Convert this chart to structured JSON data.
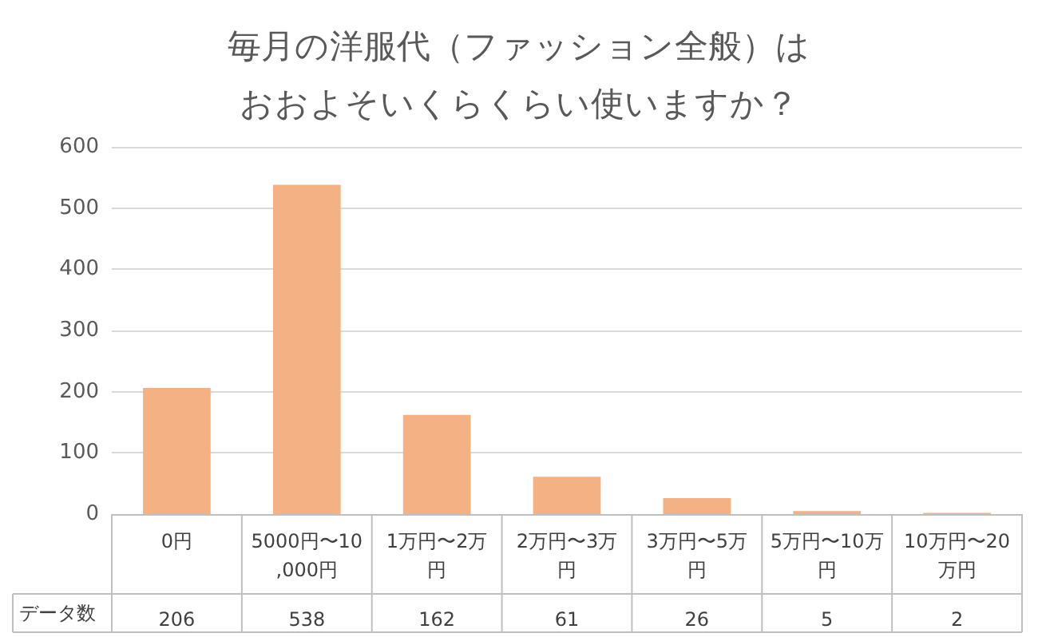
{
  "chart_data": {
    "type": "bar",
    "title": "毎月の洋服代（ファッション全般）はおおよそいくらくらい使いますか？",
    "categories": [
      "0円",
      "5000円〜10,000円",
      "1万円〜2万円",
      "2万円〜3万円",
      "3万円〜5万円",
      "5万円〜10万円",
      "10万円〜20万円"
    ],
    "series": [
      {
        "name": "データ数",
        "color": "#f4b183",
        "values": [
          206,
          538,
          162,
          61,
          26,
          5,
          2
        ]
      }
    ],
    "ylim": [
      0,
      600
    ],
    "yticks": [
      0,
      100,
      200,
      300,
      400,
      500,
      600
    ],
    "grid": "y",
    "data_labels": true,
    "legend": false
  }
}
